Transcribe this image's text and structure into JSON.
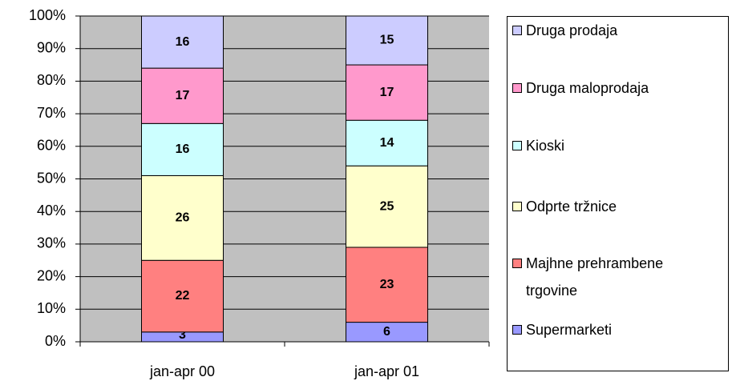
{
  "chart_data": {
    "type": "stacked_bar",
    "categories": [
      "jan-apr 00",
      "jan-apr 01"
    ],
    "series": [
      {
        "name": "Supermarketi",
        "color": "#9999ff",
        "values": [
          3,
          6
        ]
      },
      {
        "name": "Majhne prehrambene trgovine",
        "color": "#ff8080",
        "values": [
          22,
          23
        ]
      },
      {
        "name": "Odprte tržnice",
        "color": "#ffffcc",
        "values": [
          26,
          25
        ]
      },
      {
        "name": "Kioski",
        "color": "#ccffff",
        "values": [
          16,
          14
        ]
      },
      {
        "name": "Druga maloprodaja",
        "color": "#ff99cc",
        "values": [
          17,
          17
        ]
      },
      {
        "name": "Druga prodaja",
        "color": "#ccccff",
        "values": [
          16,
          15
        ]
      }
    ],
    "ylim": [
      0,
      100
    ],
    "yticks": [
      {
        "value": 0,
        "label": "0%"
      },
      {
        "value": 10,
        "label": "10%"
      },
      {
        "value": 20,
        "label": "20%"
      },
      {
        "value": 30,
        "label": "30%"
      },
      {
        "value": 40,
        "label": "40%"
      },
      {
        "value": 50,
        "label": "50%"
      },
      {
        "value": 60,
        "label": "60%"
      },
      {
        "value": 70,
        "label": "70%"
      },
      {
        "value": 80,
        "label": "80%"
      },
      {
        "value": 90,
        "label": "90%"
      },
      {
        "value": 100,
        "label": "100%"
      }
    ],
    "grid": true,
    "plot_background": "#c0c0c0",
    "legend": "right"
  }
}
